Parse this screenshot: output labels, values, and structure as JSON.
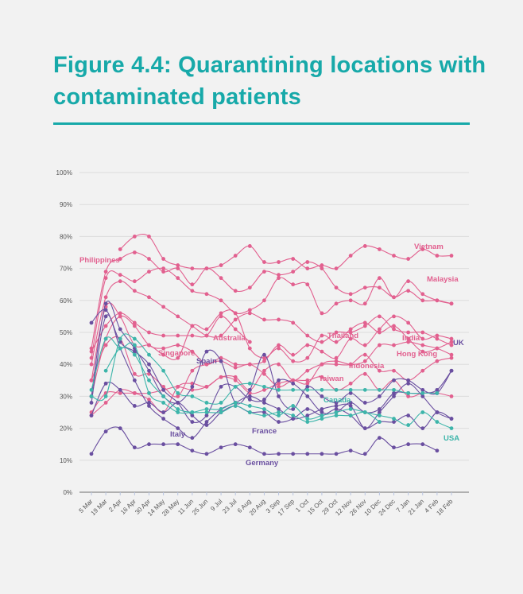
{
  "title": "Figure 4.4: Quarantining locations with contaminated patients",
  "chart_data": {
    "type": "line",
    "title": "Figure 4.4: Quarantining locations with contaminated patients",
    "xlabel": "",
    "ylabel": "",
    "ylim": [
      0,
      100
    ],
    "yticks": [
      "0%",
      "10%",
      "20%",
      "30%",
      "40%",
      "50%",
      "60%",
      "70%",
      "80%",
      "90%",
      "100%"
    ],
    "grid": true,
    "smoothed": true,
    "categories": [
      "5 Mar",
      "19 Mar",
      "2 Apr",
      "16 Apr",
      "30 Apr",
      "14 May",
      "28 May",
      "11 Jun",
      "25 Jun",
      "9 Jul",
      "23 Jul",
      "6 Aug",
      "20 Aug",
      "3 Sep",
      "17 Sep",
      "1 Oct",
      "15 Oct",
      "29 Oct",
      "12 Nov",
      "26 Nov",
      "10 Dec",
      "24 Dec",
      "7 Jan",
      "21 Jan",
      "4 Feb",
      "18 Feb"
    ],
    "colors": {
      "asia": "#e2608f",
      "europe": "#6a4fa0",
      "americas": "#3db5aa"
    },
    "series": [
      {
        "name": "Vietnam",
        "color": "#e2608f",
        "values": [
          null,
          null,
          76,
          80,
          80,
          73,
          71,
          70,
          70,
          71,
          74,
          77,
          72,
          72,
          73,
          70,
          71,
          70,
          74,
          77,
          76,
          74,
          73,
          76,
          74,
          74
        ]
      },
      {
        "name": "Philippines",
        "color": "#e2608f",
        "values": [
          45,
          69,
          73,
          75,
          73,
          69,
          70,
          65,
          70,
          67,
          63,
          64,
          69,
          68,
          69,
          72,
          70,
          64,
          62,
          64,
          64,
          61,
          63,
          60,
          60,
          59
        ]
      },
      {
        "name": "Malaysia",
        "color": "#e2608f",
        "values": [
          42,
          67,
          68,
          66,
          69,
          70,
          67,
          63,
          62,
          60,
          56,
          57,
          60,
          67,
          65,
          65,
          56,
          59,
          60,
          59,
          67,
          61,
          66,
          62,
          60,
          59
        ]
      },
      {
        "name": "Australia",
        "color": "#e2608f",
        "values": [
          40,
          61,
          66,
          63,
          61,
          58,
          55,
          52,
          49,
          49,
          54,
          56,
          54,
          54,
          53,
          49,
          47,
          50,
          50,
          52,
          55,
          51,
          50,
          50,
          48,
          46
        ]
      },
      {
        "name": "Singapore",
        "color": "#e2608f",
        "values": [
          44,
          52,
          56,
          53,
          50,
          49,
          49,
          49,
          49,
          55,
          51,
          47,
          null,
          null,
          null,
          null,
          null,
          null,
          null,
          null,
          null,
          null,
          null,
          null,
          null,
          null
        ]
      },
      {
        "name": "Thailand",
        "color": "#e2608f",
        "values": [
          35,
          58,
          55,
          46,
          46,
          43,
          42,
          52,
          51,
          56,
          56,
          45,
          42,
          45,
          41,
          42,
          49,
          47,
          51,
          53,
          50,
          52,
          48,
          44,
          45,
          47
        ]
      },
      {
        "name": "India",
        "color": "#e2608f",
        "values": [
          30,
          48,
          55,
          52,
          46,
          45,
          46,
          44,
          40,
          42,
          40,
          40,
          41,
          46,
          43,
          46,
          44,
          42,
          48,
          46,
          51,
          55,
          53,
          48,
          49,
          48
        ]
      },
      {
        "name": "Hong Kong",
        "color": "#e2608f",
        "values": [
          35,
          46,
          48,
          37,
          37,
          33,
          30,
          38,
          40,
          41,
          39,
          40,
          37,
          33,
          35,
          34,
          40,
          41,
          40,
          41,
          46,
          46,
          47,
          46,
          45,
          43
        ]
      },
      {
        "name": "Indonesia",
        "color": "#e2608f",
        "values": [
          25,
          31,
          31,
          31,
          31,
          32,
          33,
          32,
          33,
          36,
          36,
          32,
          38,
          40,
          35,
          38,
          40,
          40,
          40,
          43,
          38,
          38,
          35,
          38,
          41,
          42
        ]
      },
      {
        "name": "Taiwan",
        "color": "#e2608f",
        "values": [
          24,
          28,
          32,
          31,
          29,
          25,
          33,
          34,
          33,
          36,
          35,
          31,
          32,
          34,
          35,
          35,
          36,
          32,
          34,
          37,
          32,
          35,
          30,
          31,
          31,
          30
        ]
      },
      {
        "name": "Spain",
        "color": "#6a4fa0",
        "values": [
          30,
          59,
          51,
          45,
          38,
          30,
          28,
          33,
          44,
          41,
          28,
          32,
          43,
          30,
          26,
          33,
          30,
          28,
          31,
          28,
          30,
          35,
          35,
          32,
          31,
          38
        ]
      },
      {
        "name": "UK",
        "color": "#6a4fa0",
        "values": [
          53,
          57,
          47,
          44,
          40,
          32,
          28,
          22,
          24,
          33,
          33,
          29,
          29,
          35,
          34,
          30,
          25,
          25,
          28,
          25,
          26,
          31,
          31,
          31,
          32,
          38
        ]
      },
      {
        "name": "Italy",
        "color": "#6a4fa0",
        "values": [
          28,
          55,
          45,
          35,
          27,
          23,
          20,
          17,
          22,
          26,
          28,
          30,
          28,
          26,
          23,
          24,
          26,
          27,
          27,
          20,
          25,
          30,
          34,
          30,
          25,
          23
        ]
      },
      {
        "name": "France",
        "color": "#6a4fa0",
        "values": [
          24,
          34,
          32,
          27,
          28,
          25,
          28,
          24,
          21,
          25,
          27,
          25,
          25,
          22,
          23,
          26,
          24,
          26,
          24,
          20,
          22,
          22,
          24,
          20,
          25,
          23
        ]
      },
      {
        "name": "Germany",
        "color": "#6a4fa0",
        "values": [
          12,
          19,
          20,
          14,
          15,
          15,
          15,
          13,
          12,
          14,
          15,
          14,
          12,
          12,
          12,
          12,
          12,
          12,
          13,
          12,
          17,
          14,
          15,
          15,
          13,
          null
        ]
      },
      {
        "name": "Canada",
        "color": "#3db5aa",
        "values": [
          30,
          30,
          48,
          48,
          43,
          38,
          31,
          30,
          28,
          28,
          33,
          34,
          33,
          32,
          32,
          32,
          32,
          32,
          32,
          32,
          32,
          32,
          31,
          31,
          31,
          null
        ]
      },
      {
        "name": "USA",
        "color": "#3db5aa",
        "values": [
          32,
          48,
          45,
          46,
          31,
          28,
          25,
          25,
          26,
          26,
          28,
          27,
          26,
          24,
          27,
          23,
          24,
          25,
          26,
          25,
          24,
          23,
          21,
          25,
          22,
          20
        ]
      },
      {
        "color": "#3db5aa",
        "values": [
          null,
          38,
          45,
          43,
          35,
          30,
          26,
          25,
          25,
          25,
          27,
          25,
          24,
          25,
          24,
          22,
          23,
          24,
          24,
          25,
          22,
          null,
          null,
          null,
          null,
          null
        ]
      }
    ]
  }
}
